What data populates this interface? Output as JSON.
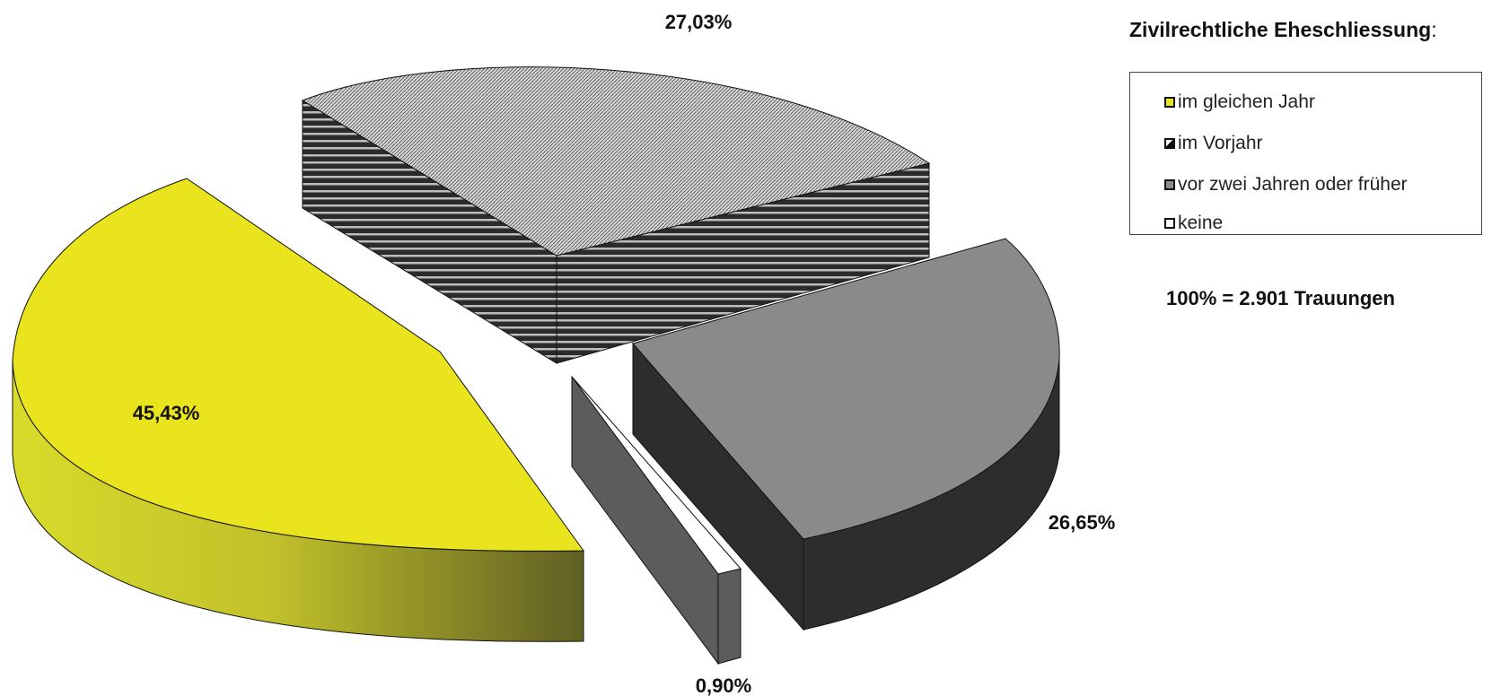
{
  "chart_data": {
    "type": "pie",
    "title": "",
    "legend_title": "Zivilrechtliche Eheschliessung",
    "legend_colon": ":",
    "legend_placement": "top-right",
    "categories": [
      "im gleichen Jahr",
      "im Vorjahr",
      "vor zwei Jahren oder früher",
      "keine"
    ],
    "values": [
      45.43,
      27.03,
      26.65,
      0.9
    ],
    "labels": [
      "45,43%",
      "27,03%",
      "26,65%",
      "0,90%"
    ],
    "colors": [
      "#e9e41d",
      "#c9c9c9",
      "#8c8c8c",
      "#ffffff"
    ],
    "note": "100% = 2.901 Trauungen"
  }
}
